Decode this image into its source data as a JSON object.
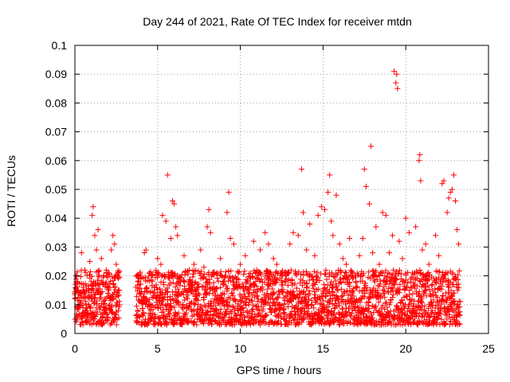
{
  "chart_data": {
    "type": "scatter",
    "title": "Day 244 of 2021, Rate Of TEC Index for receiver mtdn",
    "xlabel": "GPS time / hours",
    "ylabel": "ROTI / TECUs",
    "xlim": [
      0,
      25
    ],
    "ylim": [
      0,
      0.1
    ],
    "xticks": [
      "0",
      "5",
      "10",
      "15",
      "20",
      "25"
    ],
    "yticks": [
      "0",
      "0.01",
      "0.02",
      "0.03",
      "0.04",
      "0.05",
      "0.06",
      "0.07",
      "0.08",
      "0.09",
      "0.1"
    ],
    "grid": true,
    "marker": "+",
    "color": "#ff0000",
    "series": [
      {
        "points": [
          [
            0.0,
            0.012
          ],
          [
            0.05,
            0.02
          ],
          [
            0.1,
            0.018
          ],
          [
            0.15,
            0.006
          ],
          [
            0.2,
            0.009
          ],
          [
            0.25,
            0.014
          ],
          [
            0.3,
            0.011
          ],
          [
            0.4,
            0.028
          ],
          [
            0.45,
            0.004
          ],
          [
            0.5,
            0.016
          ],
          [
            0.6,
            0.022
          ],
          [
            0.7,
            0.009
          ],
          [
            0.8,
            0.013
          ],
          [
            0.9,
            0.025
          ],
          [
            1.0,
            0.018
          ],
          [
            1.05,
            0.041
          ],
          [
            1.1,
            0.044
          ],
          [
            1.2,
            0.034
          ],
          [
            1.3,
            0.029
          ],
          [
            1.4,
            0.036
          ],
          [
            1.5,
            0.012
          ],
          [
            1.6,
            0.026
          ],
          [
            1.7,
            0.017
          ],
          [
            1.8,
            0.009
          ],
          [
            1.9,
            0.022
          ],
          [
            2.0,
            0.014
          ],
          [
            2.1,
            0.008
          ],
          [
            2.2,
            0.029
          ],
          [
            2.3,
            0.034
          ],
          [
            2.4,
            0.031
          ],
          [
            2.5,
            0.024
          ],
          [
            2.6,
            0.013
          ],
          [
            3.8,
            0.018
          ],
          [
            3.9,
            0.011
          ],
          [
            4.0,
            0.014
          ],
          [
            4.2,
            0.028
          ],
          [
            4.3,
            0.029
          ],
          [
            4.5,
            0.021
          ],
          [
            4.6,
            0.008
          ],
          [
            4.8,
            0.016
          ],
          [
            5.0,
            0.026
          ],
          [
            5.2,
            0.024
          ],
          [
            5.3,
            0.041
          ],
          [
            5.5,
            0.039
          ],
          [
            5.6,
            0.055
          ],
          [
            5.8,
            0.033
          ],
          [
            5.9,
            0.046
          ],
          [
            6.0,
            0.045
          ],
          [
            6.1,
            0.037
          ],
          [
            6.2,
            0.034
          ],
          [
            6.4,
            0.019
          ],
          [
            6.6,
            0.027
          ],
          [
            6.8,
            0.012
          ],
          [
            7.0,
            0.018
          ],
          [
            7.2,
            0.024
          ],
          [
            7.4,
            0.013
          ],
          [
            7.6,
            0.029
          ],
          [
            7.8,
            0.023
          ],
          [
            8.0,
            0.037
          ],
          [
            8.1,
            0.043
          ],
          [
            8.2,
            0.035
          ],
          [
            8.4,
            0.016
          ],
          [
            8.6,
            0.021
          ],
          [
            8.8,
            0.026
          ],
          [
            9.0,
            0.017
          ],
          [
            9.2,
            0.042
          ],
          [
            9.3,
            0.049
          ],
          [
            9.4,
            0.033
          ],
          [
            9.6,
            0.031
          ],
          [
            9.8,
            0.019
          ],
          [
            10.0,
            0.024
          ],
          [
            10.3,
            0.027
          ],
          [
            10.5,
            0.015
          ],
          [
            10.8,
            0.032
          ],
          [
            11.0,
            0.022
          ],
          [
            11.2,
            0.029
          ],
          [
            11.5,
            0.035
          ],
          [
            11.7,
            0.031
          ],
          [
            12.0,
            0.026
          ],
          [
            12.2,
            0.024
          ],
          [
            12.5,
            0.021
          ],
          [
            12.7,
            0.018
          ],
          [
            13.0,
            0.031
          ],
          [
            13.2,
            0.035
          ],
          [
            13.5,
            0.034
          ],
          [
            13.7,
            0.057
          ],
          [
            13.8,
            0.042
          ],
          [
            14.0,
            0.029
          ],
          [
            14.2,
            0.038
          ],
          [
            14.5,
            0.027
          ],
          [
            14.7,
            0.041
          ],
          [
            14.9,
            0.044
          ],
          [
            15.1,
            0.043
          ],
          [
            15.3,
            0.049
          ],
          [
            15.4,
            0.055
          ],
          [
            15.5,
            0.039
          ],
          [
            15.6,
            0.034
          ],
          [
            15.8,
            0.048
          ],
          [
            16.0,
            0.031
          ],
          [
            16.2,
            0.026
          ],
          [
            16.4,
            0.024
          ],
          [
            16.6,
            0.033
          ],
          [
            16.8,
            0.021
          ],
          [
            17.0,
            0.016
          ],
          [
            17.2,
            0.027
          ],
          [
            17.4,
            0.033
          ],
          [
            17.5,
            0.057
          ],
          [
            17.6,
            0.051
          ],
          [
            17.8,
            0.045
          ],
          [
            17.9,
            0.065
          ],
          [
            18.0,
            0.028
          ],
          [
            18.2,
            0.037
          ],
          [
            18.4,
            0.024
          ],
          [
            18.6,
            0.042
          ],
          [
            18.8,
            0.041
          ],
          [
            19.0,
            0.028
          ],
          [
            19.2,
            0.034
          ],
          [
            19.3,
            0.091
          ],
          [
            19.4,
            0.087
          ],
          [
            19.45,
            0.09
          ],
          [
            19.5,
            0.085
          ],
          [
            19.6,
            0.032
          ],
          [
            19.8,
            0.026
          ],
          [
            20.0,
            0.04
          ],
          [
            20.2,
            0.035
          ],
          [
            20.4,
            0.021
          ],
          [
            20.6,
            0.037
          ],
          [
            20.8,
            0.06
          ],
          [
            20.85,
            0.062
          ],
          [
            20.9,
            0.053
          ],
          [
            21.0,
            0.029
          ],
          [
            21.2,
            0.031
          ],
          [
            21.4,
            0.024
          ],
          [
            21.6,
            0.017
          ],
          [
            21.8,
            0.034
          ],
          [
            22.0,
            0.027
          ],
          [
            22.2,
            0.052
          ],
          [
            22.3,
            0.053
          ],
          [
            22.5,
            0.042
          ],
          [
            22.6,
            0.047
          ],
          [
            22.7,
            0.049
          ],
          [
            22.8,
            0.05
          ],
          [
            22.9,
            0.055
          ],
          [
            23.0,
            0.046
          ],
          [
            23.1,
            0.036
          ],
          [
            23.2,
            0.031
          ],
          [
            23.3,
            0.011
          ]
        ],
        "dense_band": {
          "segments": [
            [
              0.0,
              2.7
            ],
            [
              3.7,
              23.3
            ]
          ],
          "y_range": [
            0.003,
            0.022
          ],
          "typical": 0.012
        }
      }
    ]
  }
}
